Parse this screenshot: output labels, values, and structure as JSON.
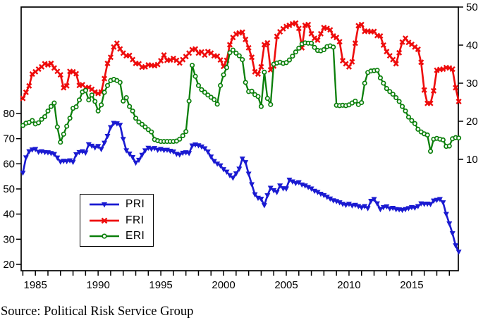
{
  "figure": {
    "caption": "Source: Political Risk Service Group",
    "background": "#ffffff",
    "axis_color": "#000000"
  },
  "chart_data": {
    "type": "line",
    "title": "",
    "xlabel": "",
    "ylabel_left": "",
    "ylabel_right": "",
    "grid": false,
    "legend_position": "inside-lower-left",
    "x_start": 1984.0,
    "x_step": 0.25,
    "x_tick_year_first": 1984,
    "x_tick_year_last": 2018,
    "x_label_years": [
      1985,
      1990,
      1995,
      2000,
      2005,
      2010,
      2015
    ],
    "left_axis": {
      "ticks": [
        20,
        30,
        40,
        50,
        60,
        70,
        80
      ],
      "min_label": 20,
      "max_label": 80
    },
    "right_axis": {
      "ticks": [
        10,
        20,
        30,
        40,
        50
      ],
      "min_label": 10,
      "max_label": 50
    },
    "series": [
      {
        "name": "PRI",
        "axis": "left",
        "color": "#1a1ad1",
        "marker": "triangle-down",
        "values": [
          56.4,
          62.5,
          64.9,
          65.6,
          65.8,
          64.7,
          64.9,
          64.6,
          64.5,
          64.2,
          63.8,
          62.4,
          60.8,
          61.1,
          61.0,
          61.3,
          60.7,
          63.7,
          64.6,
          64.9,
          64.4,
          67.7,
          67.1,
          66.4,
          67.0,
          65.8,
          68.3,
          71.0,
          74.5,
          76.2,
          76.0,
          75.4,
          69.8,
          65.3,
          64.0,
          62.6,
          60.4,
          61.5,
          63.5,
          65.3,
          66.3,
          65.9,
          66.2,
          65.5,
          65.8,
          65.4,
          65.5,
          65.1,
          64.8,
          63.9,
          63.6,
          64.3,
          64.5,
          64.2,
          67.2,
          67.6,
          67.3,
          66.8,
          66.1,
          64.8,
          62.8,
          61.0,
          60.0,
          59.3,
          57.8,
          56.8,
          55.4,
          54.4,
          56.1,
          58.0,
          62.0,
          60.6,
          56.0,
          51.8,
          47.8,
          46.4,
          46.0,
          43.5,
          47.4,
          50.4,
          49.4,
          48.7,
          51.3,
          50.2,
          50.1,
          53.6,
          52.9,
          52.3,
          52.6,
          51.7,
          51.3,
          50.7,
          50.1,
          49.2,
          48.7,
          48.0,
          47.5,
          46.8,
          46.1,
          45.4,
          45.1,
          44.6,
          44.0,
          43.6,
          44.0,
          43.4,
          43.6,
          43.1,
          42.6,
          43.1,
          42.3,
          45.2,
          45.9,
          44.2,
          41.9,
          42.7,
          43.0,
          42.2,
          42.4,
          41.9,
          41.8,
          41.6,
          41.9,
          42.3,
          42.7,
          42.5,
          43.1,
          44.2,
          44.0,
          44.1,
          43.9,
          45.3,
          45.6,
          45.9,
          44.6,
          40.0,
          36.2,
          32.3,
          27.5,
          25.0
        ]
      },
      {
        "name": "FRI",
        "axis": "right",
        "color": "#ee0c0c",
        "marker": "x",
        "values": [
          26.0,
          27.6,
          29.3,
          32.4,
          33.0,
          33.7,
          34.3,
          35.1,
          34.8,
          35.2,
          34.0,
          33.1,
          32.2,
          28.8,
          29.3,
          33.1,
          33.0,
          32.5,
          29.4,
          29.6,
          28.8,
          28.9,
          28.4,
          27.7,
          27.3,
          27.7,
          31.2,
          35.2,
          36.8,
          39.5,
          40.5,
          39.0,
          37.9,
          37.2,
          37.3,
          36.2,
          35.2,
          35.1,
          34.2,
          34.3,
          34.8,
          34.7,
          34.6,
          34.9,
          35.9,
          37.4,
          36.0,
          36.1,
          36.5,
          36.0,
          35.3,
          36.2,
          37.0,
          37.9,
          38.8,
          39.0,
          37.9,
          38.2,
          37.4,
          38.3,
          37.9,
          37.2,
          37.1,
          36.1,
          34.4,
          36.0,
          40.1,
          42.0,
          42.9,
          43.2,
          43.4,
          41.5,
          39.3,
          36.8,
          33.0,
          32.4,
          34.3,
          40.1,
          40.6,
          33.5,
          34.5,
          42.3,
          43.5,
          44.3,
          44.9,
          45.2,
          45.6,
          45.8,
          44.4,
          39.3,
          45.2,
          45.4,
          43.0,
          41.8,
          41.3,
          43.0,
          44.6,
          44.4,
          44.0,
          42.4,
          42.0,
          40.9,
          35.9,
          35.1,
          34.3,
          35.6,
          40.5,
          45.1,
          45.4,
          43.6,
          43.7,
          43.5,
          43.6,
          42.5,
          42.4,
          40.0,
          38.3,
          37.2,
          36.2,
          35.1,
          38.0,
          40.8,
          41.8,
          40.7,
          40.2,
          39.5,
          38.9,
          35.5,
          28.2,
          24.7,
          24.7,
          28.0,
          33.4,
          33.6,
          33.7,
          34.1,
          34.0,
          33.7,
          28.8,
          25.2
        ]
      },
      {
        "name": "ERI",
        "axis": "right",
        "color": "#0a7f0a",
        "marker": "circle-open",
        "values": [
          18.9,
          19.5,
          19.7,
          20.2,
          19.3,
          19.6,
          20.5,
          21.2,
          22.7,
          23.9,
          24.8,
          18.5,
          14.5,
          16.6,
          18.7,
          20.8,
          23.4,
          23.8,
          25.6,
          27.7,
          28.1,
          25.6,
          26.9,
          25.2,
          22.7,
          24.3,
          27.6,
          29.4,
          30.7,
          31.0,
          30.7,
          30.2,
          25.3,
          26.2,
          23.9,
          22.7,
          20.8,
          19.8,
          19.2,
          18.5,
          17.8,
          17.2,
          15.2,
          14.9,
          14.7,
          14.7,
          14.7,
          14.7,
          14.7,
          14.8,
          15.3,
          16.2,
          17.3,
          25.3,
          34.7,
          31.8,
          29.4,
          28.3,
          27.6,
          26.9,
          26.3,
          25.7,
          24.5,
          29.4,
          32.2,
          34.1,
          38.0,
          38.7,
          37.9,
          37.2,
          36.2,
          30.2,
          27.8,
          27.9,
          27.0,
          26.5,
          23.9,
          32.9,
          26.0,
          24.4,
          35.0,
          35.3,
          35.5,
          35.2,
          35.4,
          36.1,
          37.1,
          38.2,
          39.2,
          40.3,
          40.6,
          40.5,
          40.5,
          39.4,
          38.6,
          38.5,
          38.8,
          39.6,
          39.8,
          39.5,
          24.2,
          24.1,
          24.2,
          24.1,
          24.3,
          24.8,
          25.3,
          24.4,
          24.9,
          30.0,
          32.8,
          33.2,
          33.3,
          33.4,
          31.4,
          30.0,
          28.6,
          27.8,
          27.1,
          26.2,
          25.2,
          23.9,
          22.7,
          21.1,
          20.2,
          19.4,
          17.9,
          17.2,
          16.7,
          16.4,
          12.1,
          15.3,
          15.5,
          15.3,
          15.1,
          13.4,
          13.5,
          15.4,
          15.7,
          15.6
        ]
      }
    ]
  }
}
